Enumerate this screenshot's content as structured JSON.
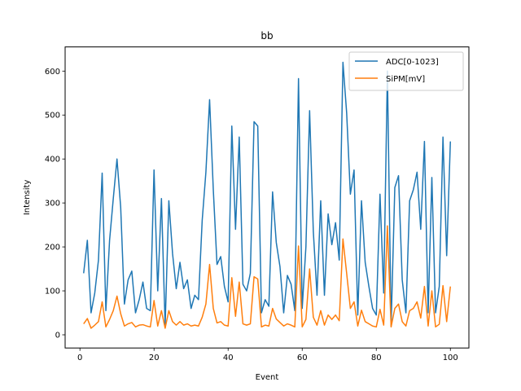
{
  "chart_data": {
    "type": "line",
    "title": "bb",
    "xlabel": "Event",
    "ylabel": "Intensity",
    "xlim": [
      -4.0,
      105.0
    ],
    "ylim": [
      -30,
      655
    ],
    "xticks": [
      0,
      20,
      40,
      60,
      80,
      100
    ],
    "yticks": [
      0,
      100,
      200,
      300,
      400,
      500,
      600
    ],
    "grid": false,
    "legend_position": "top-right",
    "x": [
      1,
      2,
      3,
      4,
      5,
      6,
      7,
      8,
      9,
      10,
      11,
      12,
      13,
      14,
      15,
      16,
      17,
      18,
      19,
      20,
      21,
      22,
      23,
      24,
      25,
      26,
      27,
      28,
      29,
      30,
      31,
      32,
      33,
      34,
      35,
      36,
      37,
      38,
      39,
      40,
      41,
      42,
      43,
      44,
      45,
      46,
      47,
      48,
      49,
      50,
      51,
      52,
      53,
      54,
      55,
      56,
      57,
      58,
      59,
      60,
      61,
      62,
      63,
      64,
      65,
      66,
      67,
      68,
      69,
      70,
      71,
      72,
      73,
      74,
      75,
      76,
      77,
      78,
      79,
      80,
      81,
      82,
      83,
      84,
      85,
      86,
      87,
      88,
      89,
      90,
      91,
      92,
      93,
      94,
      95,
      96,
      97,
      98,
      99,
      100
    ],
    "series": [
      {
        "name": "ADC[0-1023]",
        "color": "#1f77b4",
        "values": [
          140,
          215,
          50,
          95,
          170,
          368,
          55,
          215,
          310,
          400,
          290,
          70,
          125,
          145,
          50,
          80,
          120,
          60,
          55,
          375,
          100,
          310,
          20,
          305,
          185,
          105,
          165,
          105,
          125,
          60,
          90,
          80,
          260,
          370,
          535,
          330,
          160,
          178,
          110,
          75,
          475,
          240,
          450,
          115,
          100,
          140,
          485,
          475,
          50,
          80,
          65,
          325,
          210,
          155,
          50,
          135,
          115,
          55,
          583,
          60,
          200,
          510,
          235,
          90,
          305,
          90,
          275,
          205,
          255,
          170,
          620,
          505,
          320,
          375,
          45,
          305,
          165,
          110,
          60,
          45,
          320,
          95,
          600,
          20,
          335,
          362,
          125,
          50,
          305,
          330,
          370,
          240,
          440,
          50,
          358,
          50,
          110,
          450,
          180,
          440
        ]
      },
      {
        "name": "SiPM[mV]",
        "color": "#ff7f0e",
        "values": [
          25,
          37,
          15,
          22,
          30,
          75,
          18,
          35,
          55,
          88,
          48,
          20,
          25,
          28,
          18,
          22,
          23,
          20,
          18,
          78,
          20,
          55,
          15,
          55,
          30,
          22,
          30,
          22,
          25,
          20,
          22,
          20,
          40,
          70,
          160,
          60,
          27,
          30,
          22,
          20,
          130,
          42,
          120,
          25,
          22,
          25,
          132,
          127,
          18,
          22,
          20,
          60,
          36,
          28,
          20,
          25,
          22,
          18,
          202,
          18,
          35,
          150,
          40,
          22,
          55,
          22,
          45,
          35,
          45,
          32,
          218,
          140,
          60,
          75,
          20,
          56,
          30,
          25,
          20,
          18,
          58,
          22,
          248,
          18,
          60,
          70,
          30,
          20,
          55,
          60,
          75,
          38,
          110,
          20,
          100,
          18,
          24,
          112,
          30,
          110
        ]
      }
    ]
  }
}
